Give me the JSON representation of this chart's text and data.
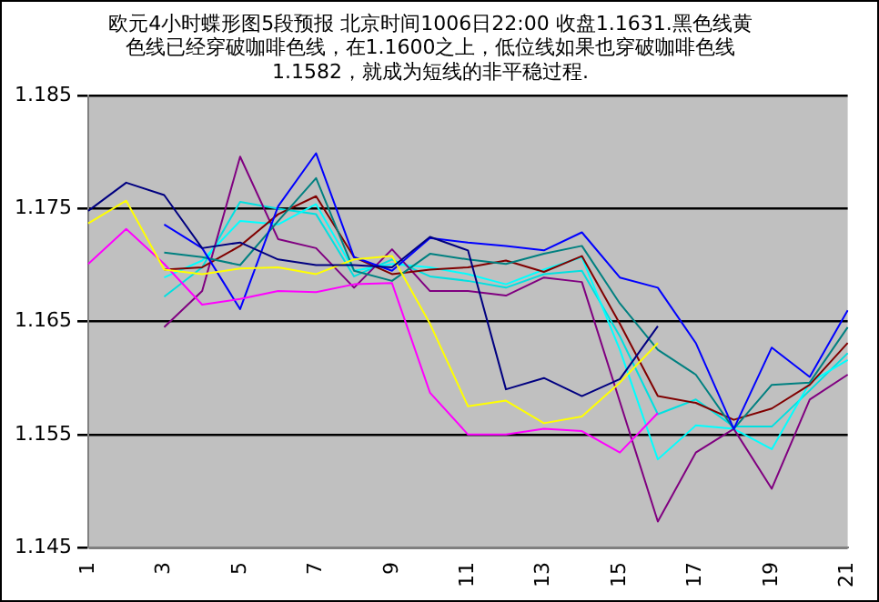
{
  "chart_data": {
    "type": "line",
    "title": [
      "欧元4小时蝶形图5段预报 北京时间1006日22:00 收盘1.1631.黑色线黄",
      "色线已经穿破咖啡色线，在1.1600之上，低位线如果也穿破咖啡色线",
      "1.1582，就成为短线的非平稳过程."
    ],
    "categories": [
      "1",
      null,
      "3",
      null,
      "5",
      null,
      "7",
      null,
      "9",
      null,
      "11",
      null,
      "13",
      null,
      "15",
      null,
      "17",
      null,
      "19",
      null,
      "21"
    ],
    "series": [
      {
        "color": "#000080",
        "values": [
          1.1748,
          1.1773,
          1.1762,
          1.1715,
          1.172,
          1.1705,
          1.17,
          1.17,
          1.1698,
          1.1725,
          1.1713,
          1.159,
          1.16,
          1.1584,
          1.1599,
          1.1646,
          null,
          null,
          null,
          null,
          null
        ]
      },
      {
        "color": "#ffff00",
        "values": [
          1.1737,
          1.1757,
          1.1696,
          1.1692,
          1.1697,
          1.1698,
          1.1692,
          1.1705,
          1.1708,
          1.1648,
          1.1575,
          1.158,
          1.156,
          1.1566,
          1.1596,
          1.1631,
          null,
          null,
          null,
          null,
          null
        ]
      },
      {
        "color": "#ff00ff",
        "values": [
          1.1701,
          1.1732,
          1.1701,
          1.1665,
          1.167,
          1.1677,
          1.1676,
          1.1683,
          1.1684,
          1.1587,
          1.155,
          1.155,
          1.1555,
          1.1553,
          1.1534,
          1.1569,
          null,
          null,
          null,
          null,
          null
        ]
      },
      {
        "color": "#0000ff",
        "values": [
          null,
          null,
          1.1736,
          1.1715,
          1.1661,
          1.1752,
          1.1799,
          1.1707,
          1.1695,
          1.1724,
          1.172,
          1.1717,
          1.1713,
          1.1729,
          1.1689,
          1.168,
          1.1631,
          1.1555,
          1.1627,
          1.1601,
          1.166
        ]
      },
      {
        "color": "#008080",
        "values": [
          null,
          null,
          1.1711,
          1.1707,
          1.17,
          1.1739,
          1.1777,
          1.1695,
          1.1686,
          1.171,
          1.1705,
          1.1701,
          1.171,
          1.1717,
          1.1666,
          1.1625,
          1.1603,
          1.1555,
          1.1594,
          1.1596,
          1.1645
        ]
      },
      {
        "color": "#800000",
        "values": [
          null,
          null,
          1.1696,
          1.1698,
          1.1717,
          1.1745,
          1.1761,
          1.1707,
          1.1692,
          1.1696,
          1.1698,
          1.1704,
          1.1694,
          1.1708,
          1.1648,
          1.1584,
          1.1578,
          1.1563,
          1.1573,
          1.1594,
          1.1631
        ]
      },
      {
        "color": "#800080",
        "values": [
          null,
          null,
          1.1645,
          1.1677,
          1.1796,
          1.1723,
          1.1715,
          1.168,
          1.1714,
          1.1677,
          1.1677,
          1.1673,
          1.1689,
          1.1685,
          1.1579,
          1.1473,
          1.1534,
          1.1555,
          1.1502,
          1.1581,
          1.1603
        ]
      },
      {
        "color": "#00ffff",
        "values": [
          null,
          null,
          1.1689,
          1.1704,
          1.1739,
          1.1736,
          1.1754,
          1.1695,
          1.1701,
          1.1698,
          1.1692,
          1.1683,
          1.1696,
          1.1707,
          1.1625,
          1.1528,
          1.1558,
          1.1555,
          1.1537,
          1.1596,
          1.1616
        ]
      },
      {
        "color": "#00e0e0",
        "values": [
          null,
          null,
          1.1672,
          1.1698,
          1.1756,
          1.175,
          1.1745,
          1.169,
          1.1705,
          1.169,
          1.1686,
          1.168,
          1.1692,
          1.1695,
          1.1637,
          1.1568,
          1.1581,
          1.1557,
          1.1557,
          1.1589,
          1.1622
        ]
      }
    ],
    "ylim": [
      1.145,
      1.185
    ],
    "yticks": [
      1.145,
      1.155,
      1.165,
      1.175,
      1.185
    ],
    "grid": "y",
    "legend": false,
    "marker": "none",
    "line_style": "solid"
  }
}
